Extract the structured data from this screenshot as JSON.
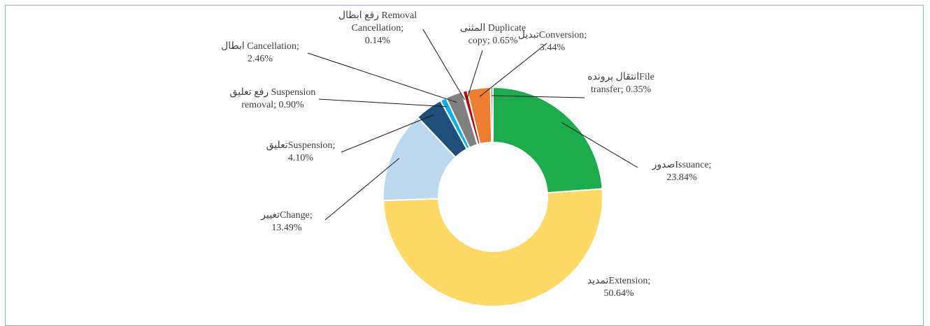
{
  "chart_data": {
    "type": "donut",
    "categories": [
      "صدورIssuance;",
      "تمدیدExtension;",
      "تغییرChange;",
      "تعلیقSuspension;",
      "رفع تعلیق Suspension\nremoval;",
      "ابطال Cancellation;",
      "رفع ابطال Removal\nCancellation;",
      "المثنی Duplicate\ncopy;",
      "تبدیلConversion;",
      "انتقال پروندهFile\ntransfer;"
    ],
    "values": [
      23.84,
      50.64,
      13.49,
      4.1,
      0.9,
      2.46,
      0.14,
      0.65,
      3.44,
      0.35
    ],
    "value_labels": [
      "23.84%",
      "50.64%",
      "13.49%",
      "4.10%",
      "0.90%",
      "2.46%",
      "0.14%",
      "0.65%",
      "3.44%",
      "0.35%"
    ],
    "colors": [
      "#1eab4e",
      "#ffd966",
      "#bdd7ee",
      "#1f4e79",
      "#00b0f0",
      "#808080",
      "#2e75b6",
      "#c00000",
      "#ed7d31",
      "#6aa88e"
    ]
  }
}
